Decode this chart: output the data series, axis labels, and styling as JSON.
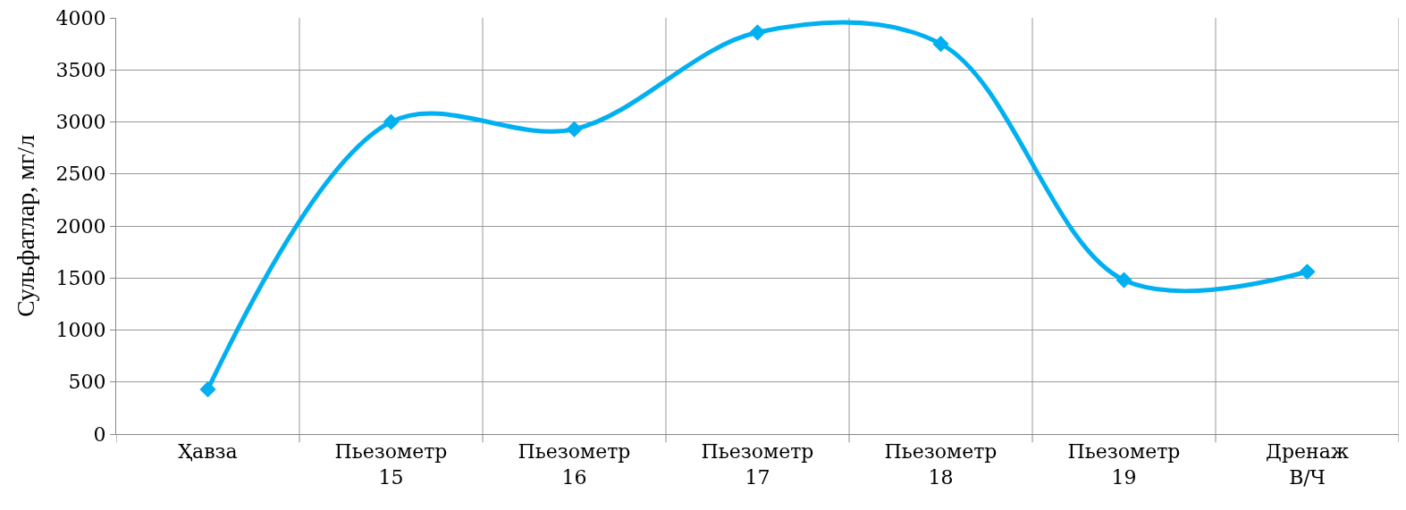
{
  "chart_data": {
    "type": "line",
    "ylabel": "Сульфатлар, мг/л",
    "categories": [
      "Ҳавза",
      "Пьезометр 15",
      "Пьезометр 16",
      "Пьезометр 17",
      "Пьезометр 18",
      "Пьезометр 19",
      "Дренаж В/Ч"
    ],
    "series": [
      {
        "color": "#00b0f0",
        "values": [
          430,
          3000,
          2930,
          3860,
          3750,
          1480,
          1560
        ]
      }
    ],
    "ylim": [
      0,
      4000
    ],
    "yticks": [
      0,
      500,
      1000,
      1500,
      2000,
      2500,
      3000,
      3500,
      4000
    ],
    "grid": true,
    "marker": "diamond",
    "line_style": "solid",
    "legend": false
  }
}
